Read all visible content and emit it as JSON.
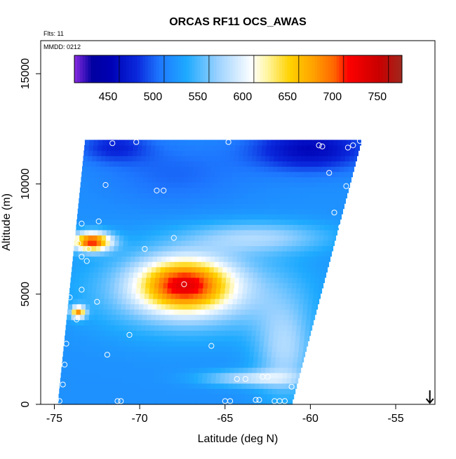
{
  "chart_data": {
    "type": "heatmap",
    "title": "ORCAS RF11 OCS_AWAS",
    "meta_lines": [
      "Flts: 11",
      "MMDD: 0212"
    ],
    "xlabel": "Latitude (deg N)",
    "ylabel": "Altitude (m)",
    "xlim": [
      -75.8,
      -52.7
    ],
    "ylim": [
      0,
      16500
    ],
    "xticks": [
      -75,
      -70,
      -65,
      -60,
      -55
    ],
    "xtick_labels": [
      "-75",
      "-70",
      "-65",
      "-60",
      "-55"
    ],
    "yticks": [
      0,
      5000,
      10000,
      15000
    ],
    "ytick_labels": [
      "0",
      "5000",
      "10000",
      "15000"
    ],
    "colorbar": {
      "vmin": 400,
      "vmax": 765,
      "ticks": [
        450,
        500,
        550,
        600,
        650,
        700,
        750
      ],
      "tick_labels": [
        "450",
        "500",
        "550",
        "600",
        "650",
        "700",
        "750"
      ],
      "stops": [
        [
          400,
          "#8b2be2"
        ],
        [
          420,
          "#0000a0"
        ],
        [
          440,
          "#0000b4"
        ],
        [
          470,
          "#0a28dc"
        ],
        [
          495,
          "#1e78ff"
        ],
        [
          525,
          "#1eaaff"
        ],
        [
          560,
          "#9cd2ff"
        ],
        [
          598,
          "#ffffff"
        ],
        [
          615,
          "#fff5a0"
        ],
        [
          640,
          "#ffd200"
        ],
        [
          665,
          "#ffa500"
        ],
        [
          690,
          "#ff6400"
        ],
        [
          705,
          "#ff0000"
        ],
        [
          740,
          "#c80000"
        ],
        [
          765,
          "#a0281e"
        ]
      ]
    },
    "region_polygon": [
      [
        -74.8,
        0
      ],
      [
        -73.2,
        12000
      ],
      [
        -57.0,
        12000
      ],
      [
        -61.1,
        0
      ]
    ],
    "field": {
      "background": 510,
      "features": [
        {
          "lat": -67.4,
          "alt": 5450,
          "value": 655,
          "sigma_lat": 1.8,
          "sigma_alt": 800
        },
        {
          "lat": -67.0,
          "alt": 5200,
          "value": 580,
          "sigma_lat": 3.8,
          "sigma_alt": 1300
        },
        {
          "lat": -72.8,
          "alt": 7400,
          "value": 700,
          "sigma_lat": 0.8,
          "sigma_alt": 300
        },
        {
          "lat": -63.0,
          "alt": 7600,
          "value": 560,
          "sigma_lat": 3.0,
          "sigma_alt": 500
        },
        {
          "lat": -60.0,
          "alt": 11600,
          "value": 445,
          "sigma_lat": 2.4,
          "sigma_alt": 700
        },
        {
          "lat": -71.5,
          "alt": 11700,
          "value": 470,
          "sigma_lat": 1.5,
          "sigma_alt": 500
        },
        {
          "lat": -68.0,
          "alt": 10500,
          "value": 490,
          "sigma_lat": 3.0,
          "sigma_alt": 1000
        },
        {
          "lat": -61.5,
          "alt": 2500,
          "value": 565,
          "sigma_lat": 1.2,
          "sigma_alt": 1500
        },
        {
          "lat": -63.5,
          "alt": 1200,
          "value": 570,
          "sigma_lat": 2.0,
          "sigma_alt": 250
        },
        {
          "lat": -73.6,
          "alt": 4200,
          "value": 660,
          "sigma_lat": 0.3,
          "sigma_alt": 200
        }
      ]
    },
    "sample_points": [
      [
        -74.9,
        200
      ],
      [
        -74.7,
        150
      ],
      [
        -74.5,
        900
      ],
      [
        -74.4,
        1800
      ],
      [
        -74.7,
        2500
      ],
      [
        -74.3,
        2750
      ],
      [
        -73.7,
        3850
      ],
      [
        -74.1,
        4850
      ],
      [
        -73.4,
        5200
      ],
      [
        -72.5,
        4650
      ],
      [
        -73.1,
        6500
      ],
      [
        -73.4,
        6700
      ],
      [
        -73.0,
        7050
      ],
      [
        -73.6,
        7300
      ],
      [
        -73.4,
        8200
      ],
      [
        -72.4,
        8300
      ],
      [
        -72.0,
        9950
      ],
      [
        -71.6,
        11850
      ],
      [
        -70.2,
        11900
      ],
      [
        -69.0,
        9700
      ],
      [
        -68.6,
        9700
      ],
      [
        -69.7,
        7050
      ],
      [
        -68.0,
        7550
      ],
      [
        -67.4,
        5450
      ],
      [
        -70.6,
        3150
      ],
      [
        -71.9,
        2250
      ],
      [
        -71.3,
        150
      ],
      [
        -71.1,
        150
      ],
      [
        -65.8,
        2650
      ],
      [
        -65.0,
        150
      ],
      [
        -64.7,
        150
      ],
      [
        -64.3,
        1150
      ],
      [
        -63.8,
        1150
      ],
      [
        -63.2,
        200
      ],
      [
        -63.0,
        200
      ],
      [
        -62.1,
        150
      ],
      [
        -61.8,
        150
      ],
      [
        -61.5,
        150
      ],
      [
        -61.1,
        800
      ],
      [
        -62.5,
        1250
      ],
      [
        -62.8,
        1250
      ],
      [
        -64.8,
        11900
      ],
      [
        -59.5,
        11750
      ],
      [
        -59.3,
        11700
      ],
      [
        -57.8,
        11650
      ],
      [
        -57.5,
        11750
      ],
      [
        -57.1,
        11950
      ],
      [
        -58.9,
        10500
      ],
      [
        -57.9,
        9900
      ],
      [
        -58.6,
        8700
      ],
      [
        -58.2,
        8050
      ],
      [
        -58.0,
        8200
      ]
    ],
    "arrow_marker": {
      "lat": -53.0,
      "alt": 0
    },
    "grid": false,
    "legend": "colorbar inside plot, top"
  }
}
